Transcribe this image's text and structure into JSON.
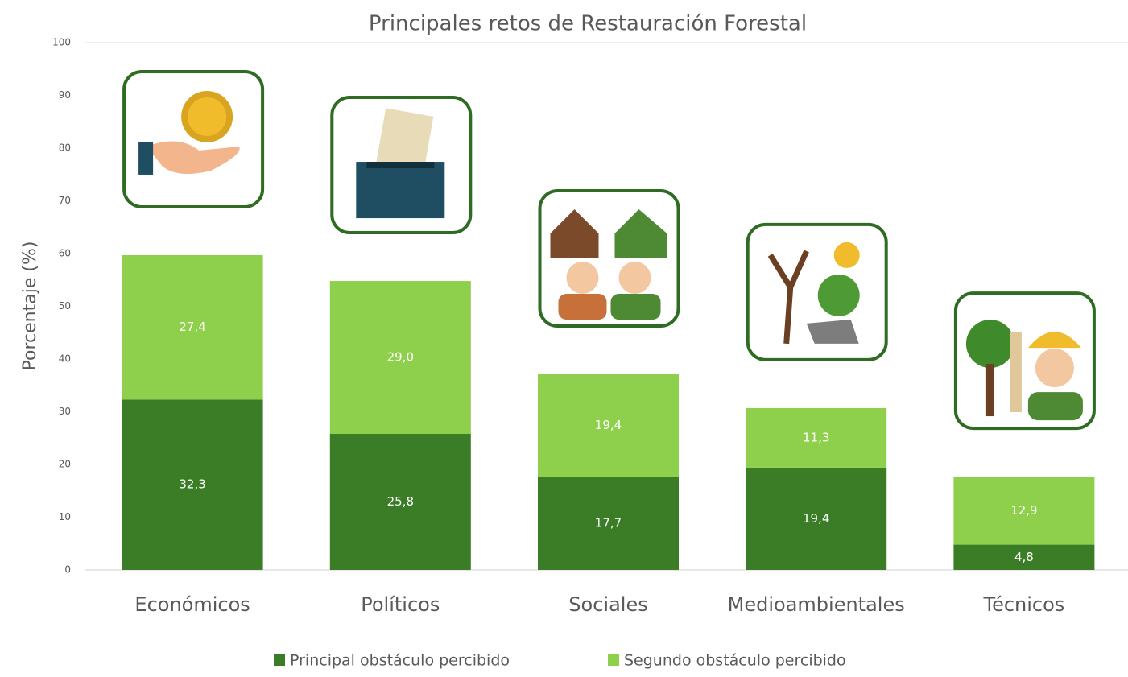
{
  "chart_data": {
    "type": "stacked-bar",
    "title": "Principales retos de Restauración Forestal",
    "y_label": "Porcentaje (%)",
    "categories": [
      "Económicos",
      "Políticos",
      "Sociales",
      "Medioambientales",
      "Técnicos"
    ],
    "series": [
      {
        "name": "Principal obstáculo percibido",
        "color": "#3b7d27",
        "values": [
          32.3,
          25.8,
          17.7,
          19.4,
          4.8
        ],
        "value_labels": [
          "32,3",
          "25,8",
          "17,7",
          "19,4",
          "4,8"
        ]
      },
      {
        "name": "Segundo obstáculo percibido",
        "color": "#8ecf4b",
        "values": [
          27.4,
          29.0,
          19.4,
          11.3,
          12.9
        ],
        "value_labels": [
          "27,4",
          "29,0",
          "19,4",
          "11,3",
          "12,9"
        ]
      }
    ],
    "ylim": [
      0,
      100
    ],
    "yticks": [
      0,
      10,
      20,
      30,
      40,
      50,
      60,
      70,
      80,
      90,
      100
    ],
    "grid": false
  }
}
